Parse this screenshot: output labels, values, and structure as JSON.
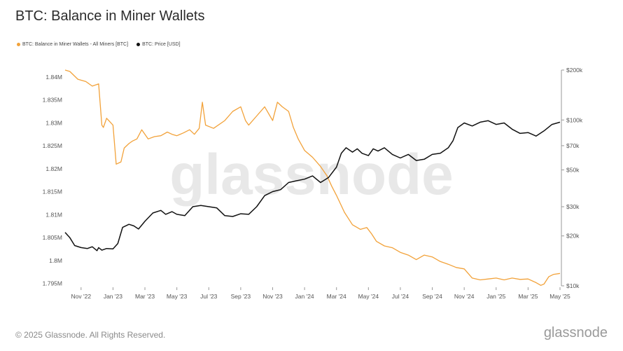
{
  "title": "BTC: Balance in Miner Wallets",
  "legend": [
    {
      "label": "BTC: Balance in Miner Wallets - All Miners [BTC]",
      "color": "#f2a23a"
    },
    {
      "label": "BTC: Price [USD]",
      "color": "#111111"
    }
  ],
  "watermark": "glassnode",
  "footer": "© 2025 Glassnode. All Rights Reserved.",
  "brand": "glassnode",
  "chart_data": {
    "type": "line",
    "x_ticks": [
      "Nov '22",
      "Jan '23",
      "Mar '23",
      "May '23",
      "Jul '23",
      "Sep '23",
      "Nov '23",
      "Jan '24",
      "Mar '24",
      "May '24",
      "Jul '24",
      "Sep '24",
      "Nov '24",
      "Jan '25",
      "Mar '25",
      "May '25"
    ],
    "x_range": [
      0,
      31
    ],
    "left_axis": {
      "ticks": [
        "1.795M",
        "1.8M",
        "1.805M",
        "1.81M",
        "1.815M",
        "1.82M",
        "1.825M",
        "1.83M",
        "1.835M",
        "1.84M"
      ],
      "range": [
        1.7945,
        1.8415
      ],
      "unit": "BTC"
    },
    "right_axis": {
      "ticks": [
        "$10k",
        "$20k",
        "$30k",
        "$50k",
        "$70k",
        "$100k",
        "$200k"
      ],
      "tick_values": [
        10000,
        20000,
        30000,
        50000,
        70000,
        100000,
        200000
      ],
      "scale": "log",
      "range": [
        10000,
        200000
      ]
    },
    "series": [
      {
        "name": "BTC: Balance in Miner Wallets - All Miners [BTC]",
        "axis": "left",
        "color": "#f2a23a",
        "x": [
          0,
          0.3,
          0.8,
          1.3,
          1.7,
          2.1,
          2.3,
          2.4,
          2.6,
          3.0,
          3.2,
          3.5,
          3.7,
          4.0,
          4.2,
          4.5,
          4.8,
          5.2,
          5.6,
          6.0,
          6.4,
          6.7,
          7.0,
          7.4,
          7.8,
          8.1,
          8.4,
          8.6,
          8.8,
          9.3,
          10.0,
          10.5,
          11.0,
          11.3,
          11.5,
          12.0,
          12.5,
          13.0,
          13.3,
          13.6,
          14.0,
          14.3,
          14.6,
          15.0,
          15.5,
          16.0,
          16.4,
          16.7,
          17.0,
          17.5,
          18.0,
          18.5,
          18.9,
          19.2,
          19.5,
          20.0,
          20.5,
          21.0,
          21.5,
          22.0,
          22.5,
          23.0,
          23.5,
          24.0,
          24.5,
          25.0,
          25.5,
          26.0,
          26.5,
          27.0,
          27.5,
          28.0,
          28.5,
          29.0,
          29.5,
          29.8,
          30.0,
          30.3,
          30.6,
          31.0
        ],
        "y": [
          1.8415,
          1.8412,
          1.8395,
          1.839,
          1.838,
          1.8385,
          1.8295,
          1.829,
          1.831,
          1.8295,
          1.821,
          1.8215,
          1.8245,
          1.8255,
          1.826,
          1.8265,
          1.8285,
          1.8265,
          1.827,
          1.8272,
          1.828,
          1.8275,
          1.8272,
          1.8278,
          1.8285,
          1.8275,
          1.8288,
          1.8345,
          1.8295,
          1.8288,
          1.8305,
          1.8325,
          1.8335,
          1.8305,
          1.8295,
          1.8315,
          1.8335,
          1.8305,
          1.8345,
          1.8335,
          1.8325,
          1.829,
          1.8265,
          1.824,
          1.8225,
          1.8205,
          1.8185,
          1.8162,
          1.8142,
          1.8105,
          1.8078,
          1.8068,
          1.8072,
          1.8058,
          1.8042,
          1.8032,
          1.8028,
          1.8018,
          1.8012,
          1.8002,
          1.8012,
          1.8008,
          1.7998,
          1.7992,
          1.7985,
          1.7982,
          1.7962,
          1.7958,
          1.796,
          1.7962,
          1.7958,
          1.7962,
          1.7959,
          1.796,
          1.7952,
          1.7946,
          1.7949,
          1.7965,
          1.797,
          1.7972
        ]
      },
      {
        "name": "BTC: Price [USD]",
        "axis": "right",
        "color": "#111111",
        "x": [
          0,
          0.3,
          0.6,
          1.0,
          1.4,
          1.7,
          2.0,
          2.1,
          2.3,
          2.6,
          3.0,
          3.3,
          3.6,
          4.0,
          4.3,
          4.6,
          5.0,
          5.5,
          6.0,
          6.3,
          6.7,
          7.0,
          7.5,
          8.0,
          8.5,
          9.0,
          9.5,
          10.0,
          10.5,
          11.0,
          11.5,
          12.0,
          12.5,
          13.0,
          13.5,
          14.0,
          14.5,
          15.0,
          15.5,
          16.0,
          16.5,
          17.0,
          17.3,
          17.6,
          18.0,
          18.3,
          18.6,
          19.0,
          19.3,
          19.6,
          20.0,
          20.5,
          21.0,
          21.5,
          22.0,
          22.5,
          23.0,
          23.5,
          24.0,
          24.3,
          24.6,
          25.0,
          25.5,
          26.0,
          26.5,
          27.0,
          27.5,
          28.0,
          28.5,
          29.0,
          29.5,
          30.0,
          30.5,
          31.0
        ],
        "y": [
          21000,
          19500,
          17500,
          17000,
          16800,
          17200,
          16300,
          17000,
          16400,
          16800,
          16700,
          18000,
          22500,
          23500,
          23000,
          22000,
          24500,
          27500,
          28500,
          27000,
          28000,
          27000,
          26500,
          30000,
          30500,
          30000,
          29500,
          26500,
          26200,
          27200,
          27000,
          30000,
          35000,
          37000,
          38000,
          42000,
          43000,
          44000,
          46000,
          42000,
          45000,
          52000,
          63000,
          68000,
          64000,
          67000,
          63000,
          61000,
          67000,
          65000,
          68000,
          62000,
          59000,
          62000,
          57000,
          58000,
          62000,
          63000,
          68000,
          75000,
          90000,
          96000,
          92000,
          97000,
          99000,
          94000,
          96000,
          88000,
          83000,
          84000,
          80000,
          86000,
          94000,
          97000
        ]
      }
    ]
  }
}
